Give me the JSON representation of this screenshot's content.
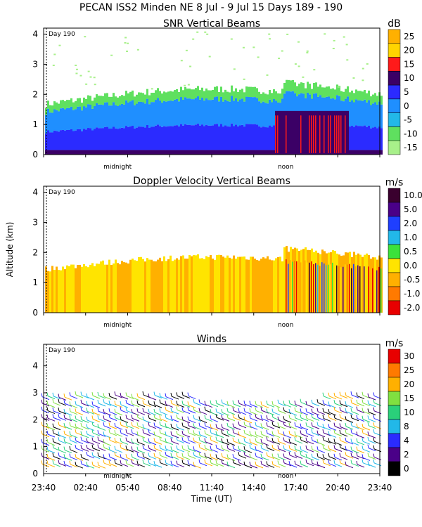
{
  "header": {
    "title": "PECAN ISS2 Minden NE    8 Jul -  9 Jul 15 Days 189 - 190"
  },
  "chart_data": [
    {
      "type": "heatmap",
      "title": "SNR Vertical Beams",
      "ylabel": "",
      "ylim": [
        0,
        4.2
      ],
      "yticks": [
        "0",
        "1",
        "2",
        "3",
        "4"
      ],
      "marker_labels": [
        "midnight",
        "noon"
      ],
      "day_marker": "Day 190",
      "colorbar": {
        "unit": "dB",
        "labels": [
          "25",
          "20",
          "15",
          "10",
          "5",
          "0",
          "-5",
          "-10",
          "-15"
        ],
        "colors": [
          "#ffb000",
          "#ffd400",
          "#ff1a1a",
          "#3b0066",
          "#2b2bff",
          "#1f8fff",
          "#22b8e8",
          "#5fe05f",
          "#a8f08a"
        ]
      }
    },
    {
      "type": "heatmap",
      "title": "Doppler Velocity Vertical Beams",
      "ylabel": "Altitude (km)",
      "ylim": [
        0,
        4.2
      ],
      "yticks": [
        "0",
        "1",
        "2",
        "3",
        "4"
      ],
      "marker_labels": [
        "midnight",
        "noon"
      ],
      "day_marker": "Day 190",
      "colorbar": {
        "unit": "m/s",
        "labels": [
          "10.0",
          "5.0",
          "2.0",
          "1.0",
          "0.5",
          "0.0",
          "-0.5",
          "-1.0",
          "-2.0"
        ],
        "colors": [
          "#3a002e",
          "#4a0088",
          "#1f3fff",
          "#22b8e8",
          "#3be23b",
          "#ffe400",
          "#ffb000",
          "#ff7a00",
          "#e80000"
        ]
      }
    },
    {
      "type": "scatter",
      "title": "Winds",
      "ylabel": "",
      "xlabel": "Time (UT)",
      "ylim": [
        0,
        4.8
      ],
      "yticks": [
        "0",
        "1",
        "2",
        "3",
        "4"
      ],
      "xticks": [
        "23:40",
        "02:40",
        "05:40",
        "08:40",
        "11:40",
        "14:40",
        "17:40",
        "20:40",
        "23:40"
      ],
      "marker_labels": [
        "midnight",
        "noon"
      ],
      "day_marker": "Day 190",
      "colorbar": {
        "unit": "m/s",
        "labels": [
          "30",
          "25",
          "20",
          "15",
          "10",
          "8",
          "4",
          "2",
          "0"
        ],
        "colors": [
          "#e80000",
          "#ff7a00",
          "#ffb000",
          "#80e040",
          "#2ad07a",
          "#22b8e8",
          "#2b2bff",
          "#4a0088",
          "#000000"
        ]
      }
    }
  ]
}
